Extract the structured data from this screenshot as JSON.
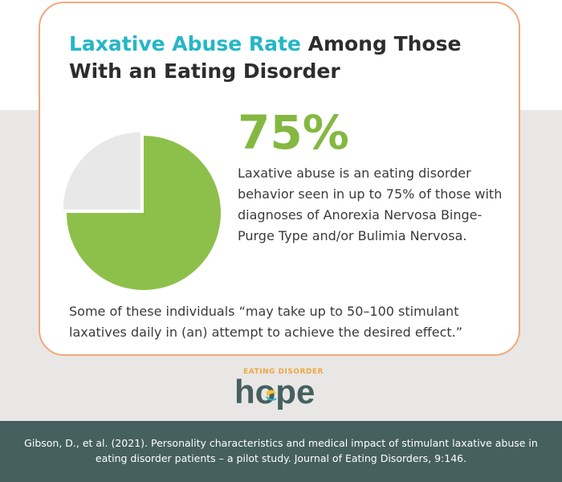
{
  "title": {
    "highlight": "Laxative Abuse Rate",
    "rest": "Among Those With an Eating Disorder"
  },
  "stat": {
    "value": "75%",
    "description": "Laxative abuse is an eating disorder behavior seen in up to 75% of those with diagnoses of Anorexia Nervosa Binge-Purge Type and/or Bulimia Nervosa."
  },
  "quote": "Some of these individuals “may take up to 50–100 stimulant laxatives daily in (an) attempt to achieve the desired effect.”",
  "logo": {
    "tagline": "EATING DISORDER",
    "word": "hope"
  },
  "citation": "Gibson, D., et al. (2021). Personality characteristics and medical impact of stimulant laxative abuse in eating disorder patients – a pilot study. Journal of Eating Disorders, 9:146.",
  "colors": {
    "accent_teal": "#24b6c6",
    "stat_green": "#84b841",
    "pie_rest": "#e8e8e8",
    "card_border": "#f4a87a",
    "footer_bg": "#46605f"
  },
  "chart_data": {
    "type": "pie",
    "title": "",
    "slices": [
      {
        "label": "",
        "value": 75,
        "color": "#8dc04a",
        "exploded": false
      },
      {
        "label": "",
        "value": 25,
        "color": "#e8e8e8",
        "exploded": true
      }
    ]
  }
}
